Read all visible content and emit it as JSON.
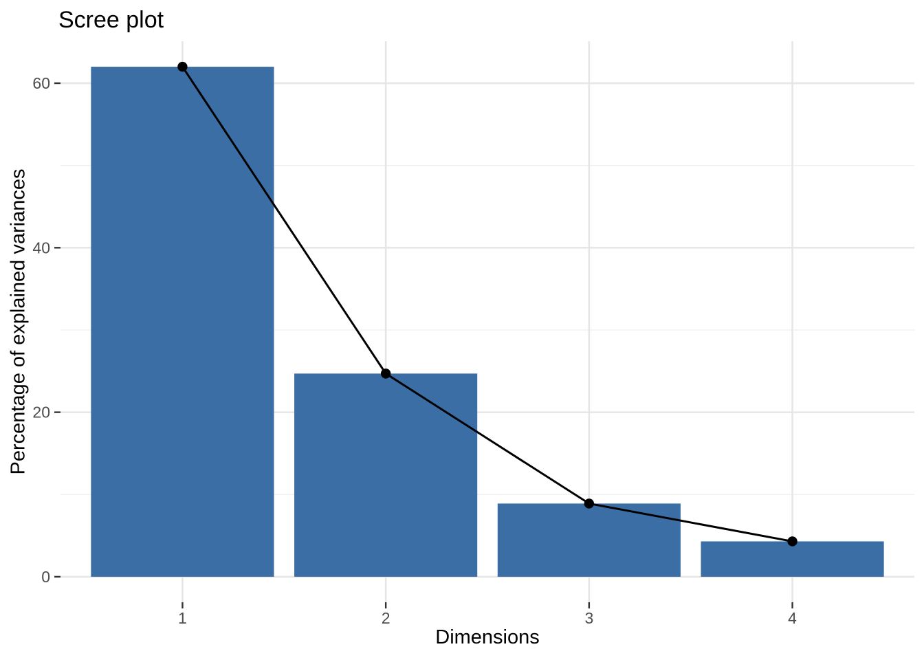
{
  "figure": {
    "background": "#FFFFFF"
  },
  "chart_data": {
    "type": "bar",
    "overlay": "line",
    "title": "Scree plot",
    "xlabel": "Dimensions",
    "ylabel": "Percentage of explained variances",
    "categories": [
      "1",
      "2",
      "3",
      "4"
    ],
    "values": [
      62.0,
      24.7,
      8.9,
      4.3
    ],
    "series": [
      {
        "name": "Percentage of explained variances",
        "values": [
          62.0,
          24.7,
          8.9,
          4.3
        ]
      }
    ],
    "y_ticks": [
      0,
      20,
      40,
      60
    ],
    "y_minor_ticks": [
      10,
      30,
      50
    ],
    "ylim": [
      0,
      62
    ],
    "y_expansion_mult": 0.05,
    "grid": true,
    "legend": false,
    "colors": {
      "bar_fill": "#3A6EA5",
      "line": "#000000",
      "point": "#000000",
      "grid_major": "#E6E6E6",
      "grid_minor": "#EFEFEF",
      "tick": "#333333",
      "tick_label": "#4D4D4D",
      "text": "#000000"
    }
  }
}
